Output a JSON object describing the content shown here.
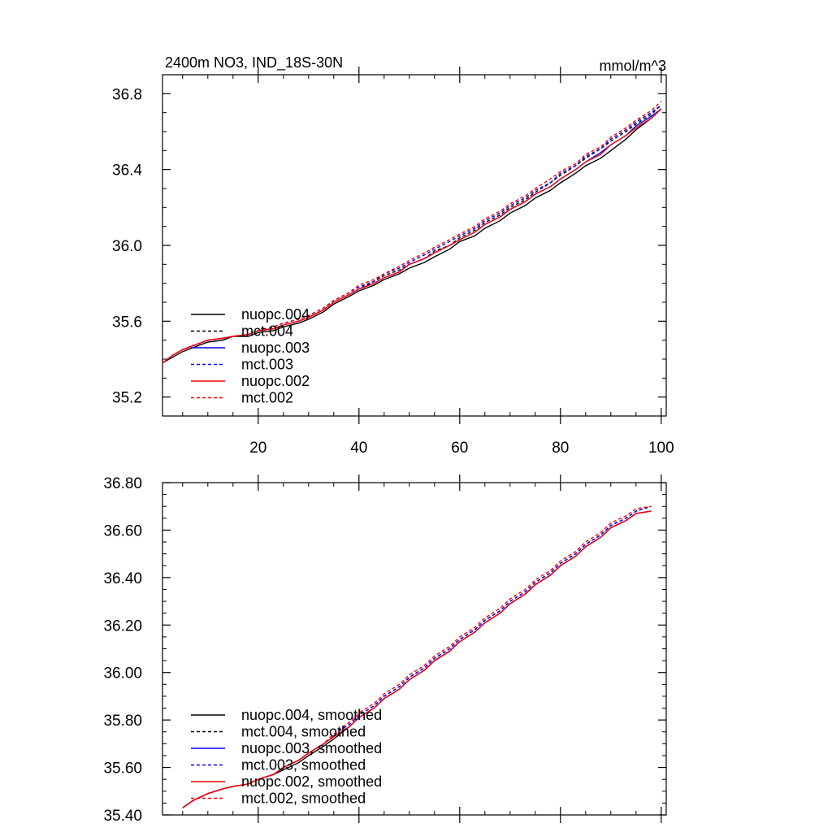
{
  "chart_data": [
    {
      "type": "line",
      "title": "2400m NO3, IND_18S-30N",
      "units": "mmol/m^3",
      "xlabel": "",
      "ylabel": "",
      "xlim": [
        1,
        101
      ],
      "ylim": [
        35.1,
        36.9
      ],
      "x_ticks": [
        20,
        40,
        60,
        80,
        100
      ],
      "x_tick_labels": [
        "20",
        "40",
        "60",
        "80",
        "100"
      ],
      "y_ticks": [
        35.2,
        35.6,
        36.0,
        36.4,
        36.8
      ],
      "y_tick_labels": [
        "35.2",
        "35.6",
        "36.0",
        "36.4",
        "36.8"
      ],
      "legend_position": "bottom-left",
      "x": [
        1,
        3,
        5,
        8,
        10,
        13,
        15,
        18,
        20,
        23,
        25,
        28,
        30,
        33,
        35,
        38,
        40,
        43,
        45,
        48,
        50,
        53,
        55,
        58,
        60,
        63,
        65,
        68,
        70,
        73,
        75,
        78,
        80,
        83,
        85,
        88,
        90,
        93,
        95,
        98,
        100
      ],
      "series": [
        {
          "name": "nuopc.004",
          "color": "#000000",
          "dash": "solid",
          "values": [
            35.38,
            35.41,
            35.44,
            35.47,
            35.49,
            35.5,
            35.52,
            35.52,
            35.54,
            35.55,
            35.57,
            35.59,
            35.61,
            35.65,
            35.69,
            35.73,
            35.76,
            35.79,
            35.82,
            35.85,
            35.88,
            35.91,
            35.94,
            35.98,
            36.02,
            36.05,
            36.09,
            36.13,
            36.17,
            36.21,
            36.25,
            36.29,
            36.33,
            36.38,
            36.42,
            36.46,
            36.5,
            36.56,
            36.61,
            36.67,
            36.72
          ]
        },
        {
          "name": "mct.004",
          "color": "#000000",
          "dash": "dashed",
          "values": [
            35.38,
            35.42,
            35.45,
            35.48,
            35.5,
            35.51,
            35.52,
            35.53,
            35.55,
            35.56,
            35.58,
            35.6,
            35.62,
            35.66,
            35.7,
            35.74,
            35.77,
            35.81,
            35.84,
            35.87,
            35.9,
            35.93,
            35.97,
            36.0,
            36.04,
            36.08,
            36.12,
            36.16,
            36.2,
            36.24,
            36.28,
            36.33,
            36.37,
            36.42,
            36.46,
            36.51,
            36.55,
            36.6,
            36.64,
            36.69,
            36.74
          ]
        },
        {
          "name": "nuopc.003",
          "color": "#0000ff",
          "dash": "solid",
          "values": [
            35.38,
            35.42,
            35.45,
            35.48,
            35.5,
            35.51,
            35.52,
            35.53,
            35.55,
            35.56,
            35.58,
            35.6,
            35.62,
            35.66,
            35.7,
            35.74,
            35.77,
            35.8,
            35.83,
            35.86,
            35.9,
            35.93,
            35.96,
            36.0,
            36.03,
            36.07,
            36.11,
            36.15,
            36.19,
            36.23,
            36.27,
            36.31,
            36.35,
            36.4,
            36.44,
            36.49,
            36.53,
            36.58,
            36.63,
            36.68,
            36.72
          ]
        },
        {
          "name": "mct.003",
          "color": "#0000ff",
          "dash": "dashed",
          "values": [
            35.38,
            35.42,
            35.45,
            35.48,
            35.5,
            35.51,
            35.52,
            35.53,
            35.55,
            35.57,
            35.59,
            35.61,
            35.63,
            35.67,
            35.71,
            35.75,
            35.78,
            35.81,
            35.85,
            35.88,
            35.91,
            35.95,
            35.98,
            36.02,
            36.05,
            36.09,
            36.13,
            36.17,
            36.21,
            36.25,
            36.29,
            36.33,
            36.38,
            36.42,
            36.47,
            36.51,
            36.56,
            36.61,
            36.65,
            36.7,
            36.74
          ]
        },
        {
          "name": "nuopc.002",
          "color": "#ff0000",
          "dash": "solid",
          "values": [
            35.38,
            35.42,
            35.45,
            35.48,
            35.5,
            35.51,
            35.52,
            35.53,
            35.55,
            35.56,
            35.58,
            35.6,
            35.62,
            35.66,
            35.7,
            35.74,
            35.77,
            35.8,
            35.83,
            35.86,
            35.9,
            35.93,
            35.96,
            36.0,
            36.03,
            36.07,
            36.11,
            36.15,
            36.19,
            36.23,
            36.27,
            36.31,
            36.35,
            36.4,
            36.44,
            36.48,
            36.53,
            36.58,
            36.62,
            36.67,
            36.72
          ]
        },
        {
          "name": "mct.002",
          "color": "#ff0000",
          "dash": "dashed",
          "values": [
            35.38,
            35.42,
            35.45,
            35.48,
            35.5,
            35.51,
            35.52,
            35.53,
            35.55,
            35.57,
            35.59,
            35.61,
            35.63,
            35.67,
            35.71,
            35.75,
            35.79,
            35.82,
            35.85,
            35.89,
            35.92,
            35.96,
            35.99,
            36.03,
            36.06,
            36.1,
            36.14,
            36.18,
            36.22,
            36.26,
            36.3,
            36.35,
            36.39,
            36.43,
            36.48,
            36.52,
            36.57,
            36.62,
            36.66,
            36.71,
            36.76
          ]
        }
      ]
    },
    {
      "type": "line",
      "title": "",
      "xlabel": "",
      "ylabel": "",
      "xlim": [
        1,
        101
      ],
      "ylim": [
        35.4,
        36.8
      ],
      "x_ticks": [
        20,
        40,
        60,
        80,
        100
      ],
      "x_tick_labels": [],
      "y_ticks": [
        35.4,
        35.6,
        35.8,
        36.0,
        36.2,
        36.4,
        36.6,
        36.8
      ],
      "y_tick_labels": [
        "35.40",
        "35.60",
        "35.80",
        "36.00",
        "36.20",
        "36.40",
        "36.60",
        "36.80"
      ],
      "legend_position": "bottom-left",
      "x": [
        5,
        7,
        10,
        13,
        15,
        18,
        20,
        23,
        25,
        28,
        30,
        33,
        35,
        38,
        40,
        43,
        45,
        48,
        50,
        53,
        55,
        58,
        60,
        63,
        65,
        68,
        70,
        73,
        75,
        78,
        80,
        83,
        85,
        88,
        90,
        93,
        95,
        98
      ],
      "series": [
        {
          "name": "nuopc.004, smoothed",
          "color": "#000000",
          "dash": "solid",
          "values": [
            35.43,
            35.46,
            35.49,
            35.51,
            35.52,
            35.53,
            35.55,
            35.57,
            35.59,
            35.62,
            35.65,
            35.69,
            35.72,
            35.77,
            35.81,
            35.85,
            35.89,
            35.93,
            35.97,
            36.01,
            36.05,
            36.09,
            36.13,
            36.17,
            36.21,
            36.25,
            36.29,
            36.33,
            36.37,
            36.41,
            36.45,
            36.49,
            36.53,
            36.57,
            36.61,
            36.64,
            36.67,
            36.68
          ]
        },
        {
          "name": "mct.004, smoothed",
          "color": "#000000",
          "dash": "dashed",
          "values": [
            35.43,
            35.46,
            35.49,
            35.51,
            35.52,
            35.53,
            35.55,
            35.57,
            35.6,
            35.63,
            35.66,
            35.7,
            35.74,
            35.78,
            35.82,
            35.86,
            35.9,
            35.94,
            35.98,
            36.02,
            36.06,
            36.1,
            36.14,
            36.18,
            36.22,
            36.26,
            36.3,
            36.34,
            36.38,
            36.42,
            36.46,
            36.5,
            36.54,
            36.58,
            36.62,
            36.65,
            36.68,
            36.7
          ]
        },
        {
          "name": "nuopc.003, smoothed",
          "color": "#0000ff",
          "dash": "solid",
          "values": [
            35.43,
            35.46,
            35.49,
            35.51,
            35.52,
            35.53,
            35.55,
            35.57,
            35.6,
            35.63,
            35.66,
            35.7,
            35.73,
            35.77,
            35.81,
            35.85,
            35.89,
            35.93,
            35.97,
            36.01,
            36.05,
            36.09,
            36.13,
            36.17,
            36.21,
            36.25,
            36.29,
            36.33,
            36.37,
            36.41,
            36.45,
            36.49,
            36.53,
            36.57,
            36.61,
            36.64,
            36.67,
            36.68
          ]
        },
        {
          "name": "mct.003, smoothed",
          "color": "#0000ff",
          "dash": "dashed",
          "values": [
            35.43,
            35.46,
            35.49,
            35.51,
            35.52,
            35.53,
            35.55,
            35.57,
            35.6,
            35.63,
            35.66,
            35.7,
            35.74,
            35.78,
            35.82,
            35.86,
            35.9,
            35.94,
            35.98,
            36.02,
            36.06,
            36.1,
            36.14,
            36.18,
            36.22,
            36.26,
            36.3,
            36.34,
            36.38,
            36.42,
            36.46,
            36.5,
            36.54,
            36.58,
            36.62,
            36.65,
            36.68,
            36.7
          ]
        },
        {
          "name": "nuopc.002, smoothed",
          "color": "#ff0000",
          "dash": "solid",
          "values": [
            35.43,
            35.46,
            35.49,
            35.51,
            35.52,
            35.53,
            35.55,
            35.57,
            35.6,
            35.63,
            35.66,
            35.7,
            35.73,
            35.77,
            35.81,
            35.85,
            35.89,
            35.93,
            35.97,
            36.01,
            36.05,
            36.09,
            36.13,
            36.17,
            36.21,
            36.25,
            36.29,
            36.33,
            36.37,
            36.41,
            36.45,
            36.49,
            36.53,
            36.57,
            36.61,
            36.64,
            36.67,
            36.68
          ]
        },
        {
          "name": "mct.002, smoothed",
          "color": "#ff0000",
          "dash": "dashed",
          "values": [
            35.43,
            35.46,
            35.49,
            35.51,
            35.52,
            35.53,
            35.55,
            35.57,
            35.6,
            35.63,
            35.66,
            35.7,
            35.74,
            35.79,
            35.83,
            35.87,
            35.91,
            35.95,
            35.99,
            36.03,
            36.07,
            36.11,
            36.15,
            36.19,
            36.23,
            36.27,
            36.31,
            36.35,
            36.39,
            36.43,
            36.47,
            36.51,
            36.55,
            36.59,
            36.63,
            36.66,
            36.69,
            36.7
          ]
        }
      ]
    }
  ]
}
